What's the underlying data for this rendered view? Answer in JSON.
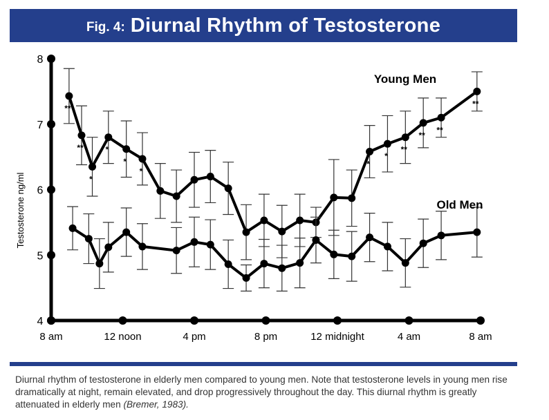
{
  "header": {
    "fig_label": "Fig. 4:",
    "title_text": "Diurnal Rhythm of Testosterone"
  },
  "caption": {
    "text": "Diurnal rhythm of testosterone in elderly men compared to young men. Note that testosterone levels in young men rise dramatically at night, remain elevated, and drop progressively throughout the day. This diurnal rhythm is greatly attenuated in elderly men",
    "citation": "(Bremer, 1983)."
  },
  "colors": {
    "header_bg": "#243f8c",
    "series_line": "#000000"
  },
  "chart_data": {
    "type": "line",
    "title": "Fig. 4: Diurnal Rhythm of Testosterone",
    "xlabel": "",
    "ylabel": "Testosterone ng/ml",
    "xlim": [
      0,
      24
    ],
    "ylim": [
      4,
      8
    ],
    "grid": false,
    "legend": "direct labels on series",
    "x_ticks": [
      {
        "x": 0,
        "label": "8 am"
      },
      {
        "x": 4,
        "label": "12 noon"
      },
      {
        "x": 8,
        "label": "4 pm"
      },
      {
        "x": 12,
        "label": "8 pm"
      },
      {
        "x": 16,
        "label": "12 midnight"
      },
      {
        "x": 20,
        "label": "4 am"
      },
      {
        "x": 24,
        "label": "8 am"
      }
    ],
    "y_ticks": [
      {
        "y": 4,
        "label": "4"
      },
      {
        "y": 5,
        "label": "5"
      },
      {
        "y": 6,
        "label": "6"
      },
      {
        "y": 7,
        "label": "7"
      },
      {
        "y": 8,
        "label": "8"
      }
    ],
    "series": [
      {
        "name": "Young Men",
        "points": [
          {
            "x": 1.0,
            "y": 7.43,
            "err": 0.42,
            "sig": "**"
          },
          {
            "x": 1.7,
            "y": 6.83,
            "err": 0.45,
            "sig": "**"
          },
          {
            "x": 2.3,
            "y": 6.35,
            "err": 0.45,
            "sig": "*"
          },
          {
            "x": 3.2,
            "y": 6.8,
            "err": 0.4,
            "sig": "*"
          },
          {
            "x": 4.2,
            "y": 6.62,
            "err": 0.43,
            "sig": "*"
          },
          {
            "x": 5.1,
            "y": 6.47,
            "err": 0.4,
            "sig": "*"
          },
          {
            "x": 6.1,
            "y": 5.98,
            "err": 0.42,
            "sig": ""
          },
          {
            "x": 7.0,
            "y": 5.9,
            "err": 0.4,
            "sig": ""
          },
          {
            "x": 8.0,
            "y": 6.15,
            "err": 0.42,
            "sig": ""
          },
          {
            "x": 8.9,
            "y": 6.2,
            "err": 0.4,
            "sig": ""
          },
          {
            "x": 9.9,
            "y": 6.02,
            "err": 0.4,
            "sig": ""
          },
          {
            "x": 10.9,
            "y": 5.35,
            "err": 0.42,
            "sig": ""
          },
          {
            "x": 11.9,
            "y": 5.53,
            "err": 0.4,
            "sig": ""
          },
          {
            "x": 12.9,
            "y": 5.36,
            "err": 0.4,
            "sig": ""
          },
          {
            "x": 13.9,
            "y": 5.53,
            "err": 0.4,
            "sig": ""
          },
          {
            "x": 14.8,
            "y": 5.5,
            "err": 0.23,
            "sig": ""
          },
          {
            "x": 15.8,
            "y": 5.88,
            "err": 0.58,
            "sig": ""
          },
          {
            "x": 16.8,
            "y": 5.87,
            "err": 0.43,
            "sig": ""
          },
          {
            "x": 17.8,
            "y": 6.58,
            "err": 0.4,
            "sig": "*"
          },
          {
            "x": 18.8,
            "y": 6.7,
            "err": 0.43,
            "sig": "*"
          },
          {
            "x": 19.8,
            "y": 6.8,
            "err": 0.4,
            "sig": "**"
          },
          {
            "x": 20.8,
            "y": 7.02,
            "err": 0.38,
            "sig": "**"
          },
          {
            "x": 21.8,
            "y": 7.1,
            "err": 0.3,
            "sig": "**"
          },
          {
            "x": 23.8,
            "y": 7.5,
            "err": 0.3,
            "sig": "**"
          }
        ]
      },
      {
        "name": "Old Men",
        "points": [
          {
            "x": 1.2,
            "y": 5.41,
            "err": 0.33
          },
          {
            "x": 2.1,
            "y": 5.25,
            "err": 0.38
          },
          {
            "x": 2.7,
            "y": 4.87,
            "err": 0.38
          },
          {
            "x": 3.2,
            "y": 5.12,
            "err": 0.38
          },
          {
            "x": 4.2,
            "y": 5.35,
            "err": 0.37
          },
          {
            "x": 5.1,
            "y": 5.13,
            "err": 0.35
          },
          {
            "x": 7.0,
            "y": 5.07,
            "err": 0.35
          },
          {
            "x": 8.0,
            "y": 5.2,
            "err": 0.38
          },
          {
            "x": 8.9,
            "y": 5.16,
            "err": 0.38
          },
          {
            "x": 9.9,
            "y": 4.86,
            "err": 0.37
          },
          {
            "x": 10.9,
            "y": 4.65,
            "err": 0.2
          },
          {
            "x": 11.9,
            "y": 4.87,
            "err": 0.37
          },
          {
            "x": 12.9,
            "y": 4.8,
            "err": 0.35
          },
          {
            "x": 13.9,
            "y": 4.88,
            "err": 0.38
          },
          {
            "x": 14.8,
            "y": 5.23,
            "err": 0.35
          },
          {
            "x": 15.8,
            "y": 5.01,
            "err": 0.37
          },
          {
            "x": 16.8,
            "y": 4.98,
            "err": 0.38
          },
          {
            "x": 17.8,
            "y": 5.27,
            "err": 0.37
          },
          {
            "x": 18.8,
            "y": 5.13,
            "err": 0.37
          },
          {
            "x": 19.8,
            "y": 4.88,
            "err": 0.37
          },
          {
            "x": 20.8,
            "y": 5.18,
            "err": 0.37
          },
          {
            "x": 21.8,
            "y": 5.3,
            "err": 0.37
          },
          {
            "x": 23.8,
            "y": 5.35,
            "err": 0.38
          }
        ]
      }
    ]
  }
}
